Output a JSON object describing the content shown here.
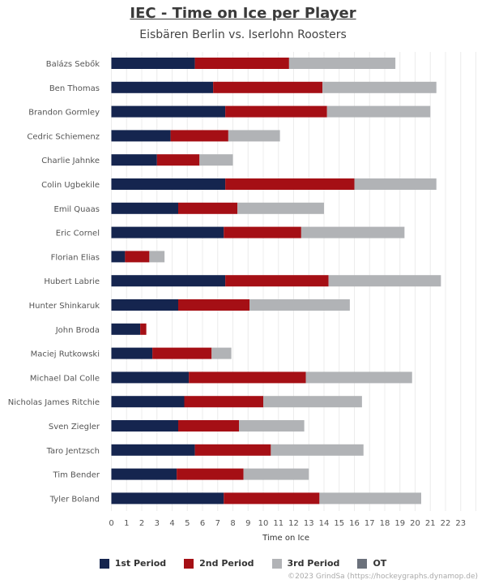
{
  "chart_data": {
    "type": "bar",
    "orientation": "horizontal",
    "stacked": true,
    "title": "IEC - Time on Ice per Player",
    "subtitle": "Eisbären Berlin vs. Iserlohn Roosters",
    "xlabel": "Time on Ice",
    "ylabel": "",
    "xlim": [
      0,
      24
    ],
    "xticks": [
      "0",
      "1",
      "2",
      "3",
      "4",
      "5",
      "6",
      "7",
      "8",
      "9",
      "10",
      "11",
      "12",
      "13",
      "14",
      "15",
      "16",
      "17",
      "18",
      "19",
      "20",
      "21",
      "22",
      "23"
    ],
    "grid": true,
    "legend_position": "bottom",
    "categories": [
      "Balázs Sebők",
      "Ben Thomas",
      "Brandon Gormley",
      "Cedric Schiemenz",
      "Charlie Jahnke",
      "Colin Ugbekile",
      "Emil Quaas",
      "Eric Cornel",
      "Florian Elias",
      "Hubert Labrie",
      "Hunter Shinkaruk",
      "John Broda",
      "Maciej Rutkowski",
      "Michael Dal Colle",
      "Nicholas James Ritchie",
      "Sven Ziegler",
      "Taro Jentzsch",
      "Tim Bender",
      "Tyler Boland"
    ],
    "series": [
      {
        "name": "1st Period",
        "color": "#15254f",
        "values": [
          5.5,
          6.7,
          7.5,
          3.9,
          3.0,
          7.5,
          4.4,
          7.4,
          0.9,
          7.5,
          4.4,
          1.9,
          2.7,
          5.1,
          4.8,
          4.4,
          5.5,
          4.3,
          7.4
        ]
      },
      {
        "name": "2nd Period",
        "color": "#a50f15",
        "values": [
          6.2,
          7.2,
          6.7,
          3.8,
          2.8,
          8.5,
          3.9,
          5.1,
          1.6,
          6.8,
          4.7,
          0.4,
          3.9,
          7.7,
          5.2,
          4.0,
          5.0,
          4.4,
          6.3
        ]
      },
      {
        "name": "3rd Period",
        "color": "#b1b3b6",
        "values": [
          7.0,
          7.5,
          6.8,
          3.4,
          2.2,
          5.4,
          5.7,
          6.8,
          1.0,
          7.4,
          6.6,
          0.0,
          1.3,
          7.0,
          6.5,
          4.3,
          6.1,
          4.3,
          6.7
        ]
      },
      {
        "name": "OT",
        "color": "#6b717b",
        "values": [
          0,
          0,
          0,
          0,
          0,
          0,
          0,
          0,
          0,
          0,
          0,
          0,
          0,
          0,
          0,
          0,
          0,
          0,
          0
        ]
      }
    ]
  },
  "credit": "©2023 GrindSa (https://hockeygraphs.dynamop.de)"
}
